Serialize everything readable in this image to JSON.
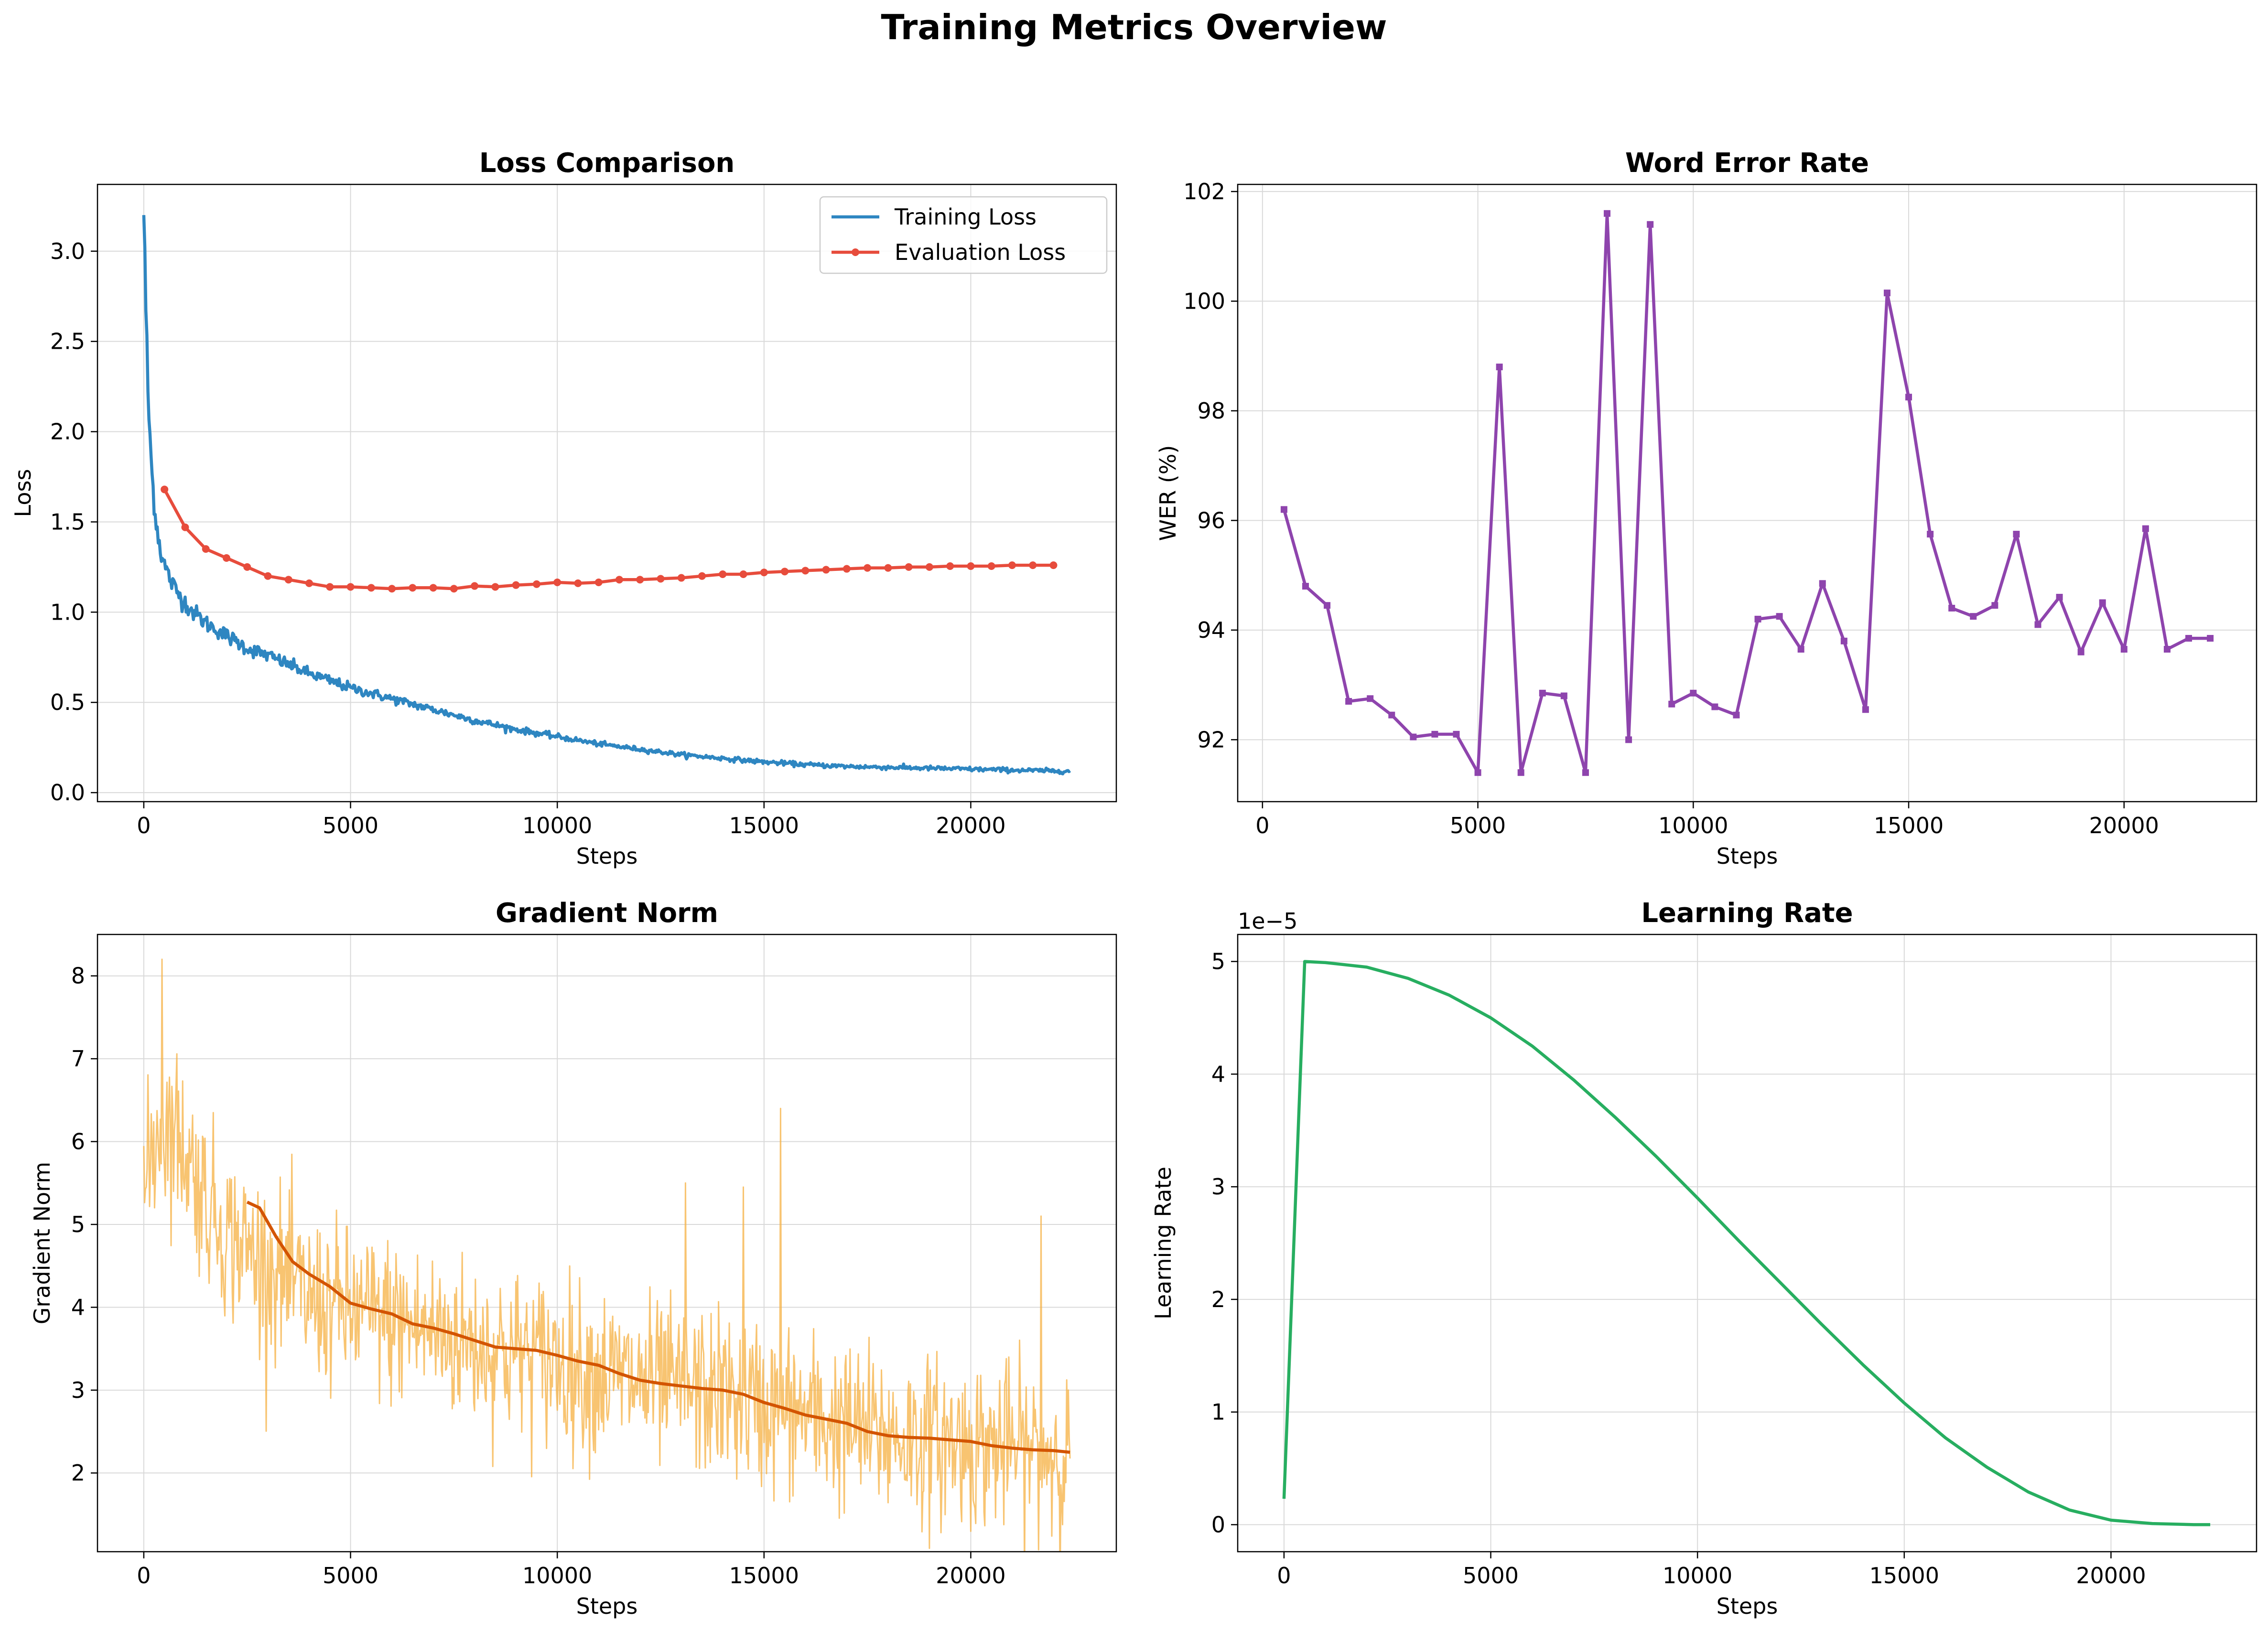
{
  "figure": {
    "suptitle": "Training Metrics Overview"
  },
  "colors": {
    "train_loss": "#2e86c1",
    "eval_loss": "#e74c3c",
    "wer": "#8e44ad",
    "grad_raw": "#f5b041",
    "grad_smooth": "#d35400",
    "lr": "#27ae60",
    "grid": "#d9d9d9"
  },
  "chart_data": [
    {
      "id": "loss",
      "type": "line",
      "title": "Loss Comparison",
      "xlabel": "Steps",
      "ylabel": "Loss",
      "xlim": [
        -1120,
        23520
      ],
      "ylim": [
        -0.05,
        3.37
      ],
      "xticks": [
        0,
        5000,
        10000,
        15000,
        20000
      ],
      "xtick_labels": [
        "0",
        "5000",
        "10000",
        "15000",
        "20000"
      ],
      "yticks": [
        0.0,
        0.5,
        1.0,
        1.5,
        2.0,
        2.5,
        3.0
      ],
      "ytick_labels": [
        "0.0",
        "0.5",
        "1.0",
        "1.5",
        "2.0",
        "2.5",
        "3.0"
      ],
      "grid": true,
      "legend_position": "upper right",
      "series": [
        {
          "name": "Training Loss",
          "color_key": "train_loss",
          "marker": "none",
          "noisy": true,
          "noise": 0.025,
          "x": [
            0,
            100,
            200,
            300,
            400,
            500,
            700,
            900,
            1200,
            1500,
            2000,
            2500,
            3000,
            3500,
            4000,
            5000,
            6000,
            7000,
            8000,
            9000,
            10000,
            11000,
            12000,
            13000,
            14000,
            15000,
            16000,
            17000,
            18000,
            19000,
            20000,
            21000,
            22000,
            22400
          ],
          "y": [
            3.2,
            2.2,
            1.75,
            1.5,
            1.35,
            1.26,
            1.15,
            1.08,
            1.0,
            0.94,
            0.87,
            0.8,
            0.76,
            0.71,
            0.66,
            0.58,
            0.52,
            0.46,
            0.4,
            0.35,
            0.31,
            0.27,
            0.24,
            0.21,
            0.19,
            0.17,
            0.155,
            0.145,
            0.14,
            0.135,
            0.13,
            0.125,
            0.12,
            0.12
          ]
        },
        {
          "name": "Evaluation Loss",
          "color_key": "eval_loss",
          "marker": "circle",
          "x": [
            500,
            1000,
            1500,
            2000,
            2500,
            3000,
            3500,
            4000,
            4500,
            5000,
            5500,
            6000,
            6500,
            7000,
            7500,
            8000,
            8500,
            9000,
            9500,
            10000,
            10500,
            11000,
            11500,
            12000,
            12500,
            13000,
            13500,
            14000,
            14500,
            15000,
            15500,
            16000,
            16500,
            17000,
            17500,
            18000,
            18500,
            19000,
            19500,
            20000,
            20500,
            21000,
            21500,
            22000
          ],
          "y": [
            1.68,
            1.47,
            1.35,
            1.3,
            1.25,
            1.2,
            1.18,
            1.16,
            1.14,
            1.14,
            1.135,
            1.13,
            1.135,
            1.135,
            1.13,
            1.145,
            1.14,
            1.15,
            1.155,
            1.165,
            1.16,
            1.165,
            1.18,
            1.18,
            1.185,
            1.19,
            1.2,
            1.21,
            1.21,
            1.22,
            1.225,
            1.23,
            1.235,
            1.24,
            1.245,
            1.245,
            1.25,
            1.25,
            1.255,
            1.255,
            1.255,
            1.26,
            1.26,
            1.26
          ]
        }
      ]
    },
    {
      "id": "wer",
      "type": "line",
      "title": "Word Error Rate",
      "xlabel": "Steps",
      "ylabel": "WER (%)",
      "xlim": [
        -575,
        23075
      ],
      "ylim": [
        90.87,
        102.13
      ],
      "xticks": [
        0,
        5000,
        10000,
        15000,
        20000
      ],
      "xtick_labels": [
        "0",
        "5000",
        "10000",
        "15000",
        "20000"
      ],
      "yticks": [
        92,
        94,
        96,
        98,
        100,
        102
      ],
      "ytick_labels": [
        "92",
        "94",
        "96",
        "98",
        "100",
        "102"
      ],
      "grid": true,
      "series": [
        {
          "color_key": "wer",
          "marker": "square",
          "x": [
            500,
            1000,
            1500,
            2000,
            2500,
            3000,
            3500,
            4000,
            4500,
            5000,
            5500,
            6000,
            6500,
            7000,
            7500,
            8000,
            8500,
            9000,
            9500,
            10000,
            10500,
            11000,
            11500,
            12000,
            12500,
            13000,
            13500,
            14000,
            14500,
            15000,
            15500,
            16000,
            16500,
            17000,
            17500,
            18000,
            18500,
            19000,
            19500,
            20000,
            20500,
            21000,
            21500,
            22000
          ],
          "y": [
            96.2,
            94.8,
            94.45,
            92.7,
            92.75,
            92.45,
            92.05,
            92.1,
            92.1,
            91.4,
            98.8,
            91.4,
            92.85,
            92.8,
            91.4,
            101.6,
            92.0,
            101.4,
            92.65,
            92.85,
            92.6,
            92.45,
            94.2,
            94.25,
            93.65,
            94.85,
            93.8,
            92.55,
            100.15,
            98.25,
            95.75,
            94.4,
            94.25,
            94.45,
            95.75,
            94.1,
            94.6,
            93.6,
            94.5,
            93.65,
            95.85,
            93.65,
            93.85,
            93.85
          ]
        }
      ]
    },
    {
      "id": "grad",
      "type": "line",
      "title": "Gradient Norm",
      "xlabel": "Steps",
      "ylabel": "Gradient Norm",
      "xlim": [
        -1120,
        23520
      ],
      "ylim": [
        1.05,
        8.5
      ],
      "xticks": [
        0,
        5000,
        10000,
        15000,
        20000
      ],
      "xtick_labels": [
        "0",
        "5000",
        "10000",
        "15000",
        "20000"
      ],
      "yticks": [
        2,
        3,
        4,
        5,
        6,
        7,
        8
      ],
      "ytick_labels": [
        "2",
        "3",
        "4",
        "5",
        "6",
        "7",
        "8"
      ],
      "grid": true,
      "series": [
        {
          "color_key": "grad_raw",
          "marker": "none",
          "noisy": true,
          "noise": 0.5,
          "spikes": [
            [
              450,
              8.2
            ],
            [
              15400,
              6.4
            ],
            [
              21700,
              5.1
            ],
            [
              13100,
              5.5
            ],
            [
              14500,
              5.45
            ]
          ],
          "x": [
            0,
            200,
            400,
            600,
            800,
            1000,
            1500,
            2000,
            3000,
            4000,
            5000,
            6000,
            7000,
            8000,
            9000,
            10000,
            11000,
            12000,
            13000,
            14000,
            15000,
            16000,
            17000,
            18000,
            19000,
            20000,
            21000,
            22000,
            22400
          ],
          "y": [
            5.3,
            5.9,
            6.2,
            6.2,
            6.1,
            5.9,
            5.3,
            4.9,
            4.5,
            4.1,
            3.95,
            3.85,
            3.7,
            3.55,
            3.45,
            3.35,
            3.2,
            3.1,
            3.0,
            2.95,
            2.8,
            2.7,
            2.55,
            2.45,
            2.4,
            2.35,
            2.3,
            2.25,
            2.22
          ]
        },
        {
          "color_key": "grad_smooth",
          "marker": "none",
          "x": [
            2500,
            2800,
            3200,
            3600,
            4000,
            4500,
            5000,
            5500,
            6000,
            6500,
            7000,
            7500,
            8000,
            8500,
            9000,
            9500,
            10000,
            10500,
            11000,
            11500,
            12000,
            12500,
            13000,
            13500,
            14000,
            14500,
            15000,
            15500,
            16000,
            16500,
            17000,
            17500,
            18000,
            18500,
            19000,
            19500,
            20000,
            20500,
            21000,
            21500,
            22000,
            22400
          ],
          "y": [
            5.27,
            5.2,
            4.85,
            4.55,
            4.4,
            4.25,
            4.05,
            3.98,
            3.92,
            3.8,
            3.75,
            3.68,
            3.6,
            3.52,
            3.5,
            3.48,
            3.42,
            3.35,
            3.3,
            3.2,
            3.12,
            3.08,
            3.05,
            3.02,
            3.0,
            2.95,
            2.85,
            2.78,
            2.7,
            2.65,
            2.6,
            2.5,
            2.45,
            2.43,
            2.42,
            2.4,
            2.38,
            2.33,
            2.3,
            2.28,
            2.27,
            2.25
          ]
        }
      ]
    },
    {
      "id": "lr",
      "type": "line",
      "title": "Learning Rate",
      "xlabel": "Steps",
      "ylabel": "Learning Rate",
      "offset_label": "1e−5",
      "xlim": [
        -1120,
        23520
      ],
      "ylim": [
        -2.4e-06,
        5.24e-05
      ],
      "xticks": [
        0,
        5000,
        10000,
        15000,
        20000
      ],
      "xtick_labels": [
        "0",
        "5000",
        "10000",
        "15000",
        "20000"
      ],
      "yticks": [
        0,
        1e-05,
        2e-05,
        3e-05,
        4e-05,
        5e-05
      ],
      "ytick_labels": [
        "0",
        "1",
        "2",
        "3",
        "4",
        "5"
      ],
      "grid": true,
      "series": [
        {
          "color_key": "lr",
          "marker": "none",
          "x": [
            0,
            500,
            1000,
            2000,
            3000,
            4000,
            5000,
            6000,
            7000,
            8000,
            9000,
            10000,
            11000,
            12000,
            13000,
            14000,
            15000,
            16000,
            17000,
            18000,
            19000,
            20000,
            21000,
            22000,
            22400
          ],
          "y": [
            2.3e-06,
            5e-05,
            4.99e-05,
            4.95e-05,
            4.85e-05,
            4.7e-05,
            4.5e-05,
            4.25e-05,
            3.95e-05,
            3.62e-05,
            3.27e-05,
            2.9e-05,
            2.52e-05,
            2.15e-05,
            1.78e-05,
            1.42e-05,
            1.08e-05,
            7.7e-06,
            5.1e-06,
            2.9e-06,
            1.3e-06,
            4e-07,
            1e-07,
            0.0,
            0.0
          ]
        }
      ]
    }
  ]
}
